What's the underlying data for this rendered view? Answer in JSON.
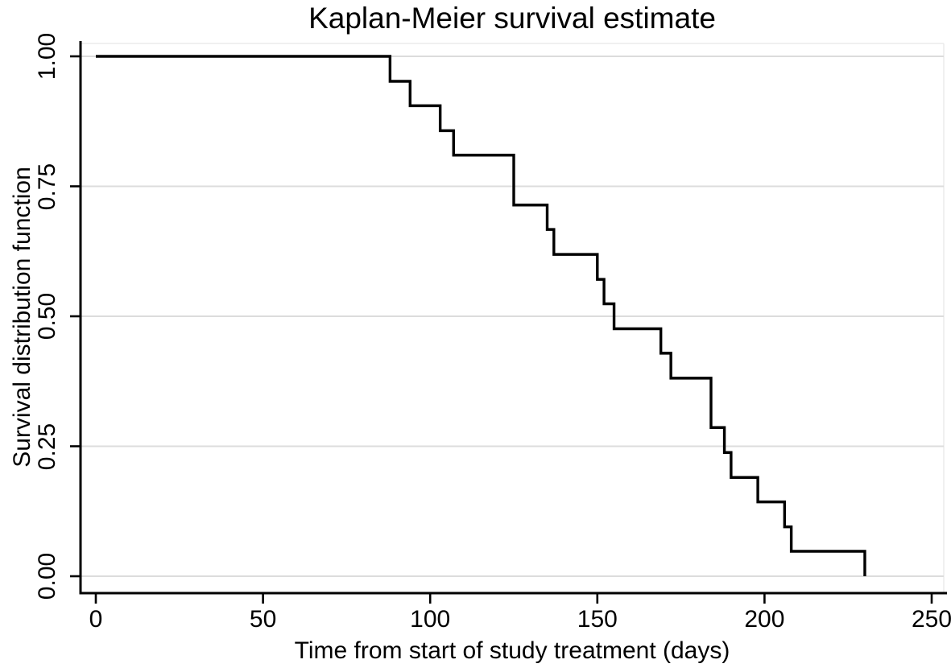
{
  "figure": {
    "background": "#ffffff"
  },
  "colors": {
    "curve": "#000000",
    "axis": "#000000",
    "text": "#000000",
    "grid": "#dcdcdc",
    "plot_border": "#ececec"
  },
  "chart_data": {
    "type": "line",
    "subtype": "kaplan-meier-step",
    "title": "Kaplan-Meier survival estimate",
    "xlabel": "Time from start of study treatment (days)",
    "ylabel": "Survival distribution function",
    "xlim": [
      0,
      250
    ],
    "ylim": [
      0.0,
      1.0
    ],
    "x_ticks": [
      0,
      50,
      100,
      150,
      200,
      250
    ],
    "y_ticks": [
      "0.00",
      "0.25",
      "0.50",
      "0.75",
      "1.00"
    ],
    "grid": "horizontal",
    "legend": "none",
    "series": [
      {
        "name": "Survival distribution function",
        "color": "#000000",
        "steps": [
          {
            "t": 0,
            "s": 1.0
          },
          {
            "t": 88,
            "s": 0.952
          },
          {
            "t": 94,
            "s": 0.905
          },
          {
            "t": 103,
            "s": 0.857
          },
          {
            "t": 107,
            "s": 0.81
          },
          {
            "t": 125,
            "s": 0.714
          },
          {
            "t": 135,
            "s": 0.667
          },
          {
            "t": 137,
            "s": 0.619
          },
          {
            "t": 150,
            "s": 0.571
          },
          {
            "t": 152,
            "s": 0.524
          },
          {
            "t": 155,
            "s": 0.476
          },
          {
            "t": 169,
            "s": 0.429
          },
          {
            "t": 172,
            "s": 0.381
          },
          {
            "t": 184,
            "s": 0.286
          },
          {
            "t": 188,
            "s": 0.238
          },
          {
            "t": 190,
            "s": 0.19
          },
          {
            "t": 198,
            "s": 0.143
          },
          {
            "t": 206,
            "s": 0.095
          },
          {
            "t": 208,
            "s": 0.048
          },
          {
            "t": 230,
            "s": 0.0
          }
        ]
      }
    ]
  }
}
